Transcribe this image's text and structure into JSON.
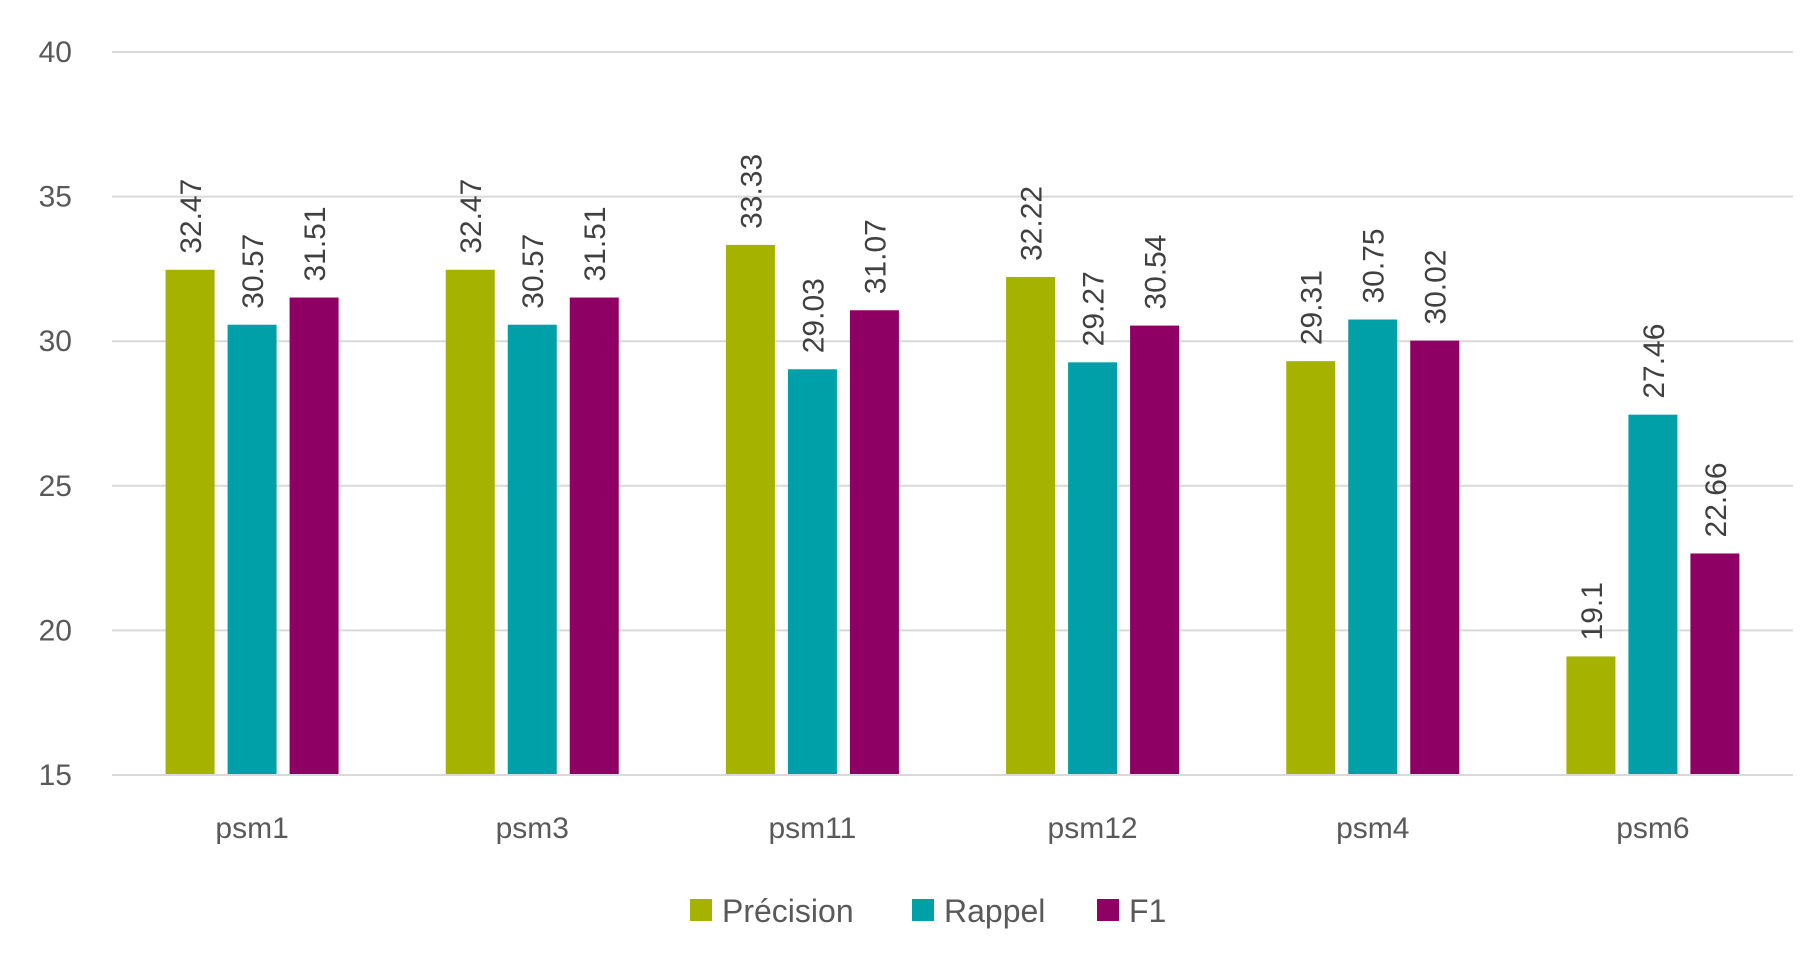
{
  "chart_data": {
    "type": "bar",
    "categories": [
      "psm1",
      "psm3",
      "psm11",
      "psm12",
      "psm4",
      "psm6"
    ],
    "series": [
      {
        "name": "Précision",
        "color": "#A5B200",
        "values": [
          32.47,
          32.47,
          33.33,
          32.22,
          29.31,
          19.1
        ],
        "labels": [
          "32.47",
          "32.47",
          "33.33",
          "32.22",
          "29.31",
          "19.1"
        ]
      },
      {
        "name": "Rappel",
        "color": "#00A0A8",
        "values": [
          30.57,
          30.57,
          29.03,
          29.27,
          30.75,
          27.46
        ],
        "labels": [
          "30.57",
          "30.57",
          "29.03",
          "29.27",
          "30.75",
          "27.46"
        ]
      },
      {
        "name": "F1",
        "color": "#8E0063",
        "values": [
          31.51,
          31.51,
          31.07,
          30.54,
          30.02,
          22.66
        ],
        "labels": [
          "31.51",
          "31.51",
          "31.07",
          "30.54",
          "30.02",
          "22.66"
        ]
      }
    ],
    "ylim": [
      15,
      40
    ],
    "yticks": [
      "15",
      "20",
      "25",
      "30",
      "35",
      "40"
    ],
    "title": "",
    "xlabel": "",
    "ylabel": "",
    "grid": true,
    "legend": "bottom-center",
    "data_labels": "rotated-vertical"
  }
}
